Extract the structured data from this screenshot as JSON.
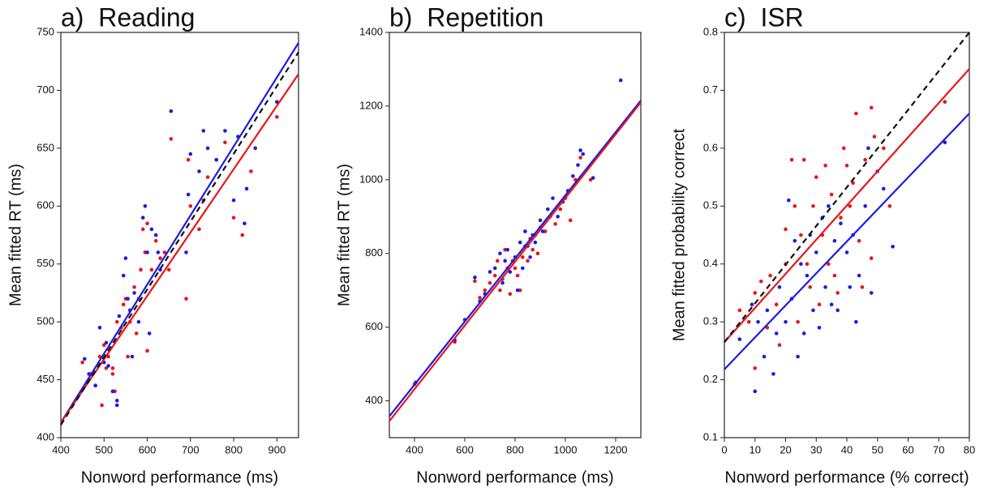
{
  "chart_data": [
    {
      "type": "scatter",
      "title": "a)  Reading",
      "xlabel": "Nonword performance (ms)",
      "ylabel": "Mean fitted RT (ms)",
      "xlim": [
        400,
        950
      ],
      "ylim": [
        400,
        750
      ],
      "xticks": [
        400,
        500,
        600,
        700,
        800,
        900
      ],
      "yticks": [
        400,
        450,
        500,
        550,
        600,
        650,
        700,
        750
      ],
      "series": [
        {
          "color": "#e8161b",
          "x": [
            450,
            470,
            480,
            490,
            495,
            500,
            505,
            510,
            520,
            525,
            530,
            540,
            545,
            550,
            555,
            560,
            570,
            575,
            580,
            585,
            590,
            595,
            600,
            600,
            610,
            620,
            630,
            640,
            655,
            690,
            695,
            700,
            720,
            730,
            740,
            760,
            780,
            800,
            820,
            840,
            900,
            520,
            560,
            650
          ],
          "values": [
            465,
            455,
            445,
            470,
            428,
            480,
            460,
            470,
            455,
            440,
            500,
            495,
            515,
            520,
            470,
            500,
            530,
            490,
            520,
            545,
            580,
            560,
            585,
            475,
            545,
            570,
            555,
            560,
            658,
            520,
            640,
            600,
            580,
            605,
            625,
            640,
            655,
            590,
            575,
            630,
            677,
            460,
            510,
            545
          ]
        },
        {
          "color": "#1c1ce0",
          "x": [
            455,
            465,
            480,
            490,
            500,
            505,
            510,
            520,
            530,
            535,
            545,
            550,
            555,
            560,
            570,
            580,
            590,
            595,
            600,
            605,
            610,
            620,
            625,
            630,
            655,
            690,
            695,
            700,
            720,
            730,
            740,
            760,
            780,
            800,
            810,
            825,
            830,
            850,
            900,
            530,
            565
          ],
          "values": [
            468,
            455,
            445,
            495,
            465,
            482,
            462,
            440,
            432,
            505,
            540,
            555,
            520,
            510,
            525,
            500,
            590,
            600,
            560,
            490,
            580,
            575,
            560,
            545,
            682,
            560,
            610,
            645,
            630,
            665,
            650,
            640,
            665,
            605,
            660,
            585,
            615,
            650,
            690,
            428,
            470
          ]
        }
      ],
      "fits": [
        {
          "color": "#1c1ce0",
          "x": [
            400,
            950
          ],
          "values": [
            413,
            741
          ]
        },
        {
          "color": "#e8161b",
          "x": [
            400,
            950
          ],
          "values": [
            413,
            714
          ]
        },
        {
          "color": "#111111",
          "dash": true,
          "x": [
            400,
            950
          ],
          "values": [
            411,
            733
          ]
        }
      ]
    },
    {
      "type": "scatter",
      "title": "b)  Repetition",
      "xlabel": "Nonword performance (ms)",
      "ylabel": "Mean fitted RT (ms)",
      "xlim": [
        300,
        1300
      ],
      "ylim": [
        300,
        1400
      ],
      "xticks": [
        400,
        600,
        800,
        1000,
        1200
      ],
      "yticks": [
        400,
        600,
        800,
        1000,
        1200,
        1400
      ],
      "series": [
        {
          "color": "#e8161b",
          "x": [
            400,
            560,
            640,
            660,
            680,
            700,
            720,
            730,
            740,
            750,
            760,
            770,
            780,
            790,
            800,
            810,
            820,
            830,
            840,
            850,
            860,
            870,
            880,
            890,
            900,
            920,
            940,
            960,
            980,
            1000,
            1020,
            1040,
            1060,
            1100
          ],
          "values": [
            445,
            560,
            725,
            680,
            700,
            720,
            740,
            780,
            700,
            730,
            810,
            760,
            690,
            780,
            760,
            740,
            700,
            790,
            820,
            780,
            840,
            810,
            850,
            800,
            870,
            860,
            900,
            880,
            920,
            950,
            890,
            1000,
            1060,
            1000
          ]
        },
        {
          "color": "#1c1ce0",
          "x": [
            405,
            560,
            600,
            640,
            660,
            680,
            700,
            720,
            740,
            750,
            760,
            770,
            780,
            800,
            810,
            820,
            830,
            840,
            850,
            860,
            870,
            880,
            900,
            910,
            930,
            950,
            970,
            990,
            1010,
            1030,
            1050,
            1060,
            1070,
            1110,
            1220
          ],
          "values": [
            450,
            565,
            620,
            735,
            670,
            690,
            750,
            760,
            800,
            720,
            780,
            810,
            750,
            790,
            700,
            830,
            760,
            860,
            820,
            790,
            850,
            830,
            890,
            860,
            920,
            950,
            900,
            940,
            970,
            1010,
            1040,
            1080,
            1070,
            1005,
            1270
          ]
        }
      ],
      "fits": [
        {
          "color": "#1c1ce0",
          "x": [
            300,
            1300
          ],
          "values": [
            358,
            1215
          ]
        },
        {
          "color": "#e8161b",
          "x": [
            300,
            1300
          ],
          "values": [
            345,
            1210
          ]
        }
      ]
    },
    {
      "type": "scatter",
      "title": "c)  ISR",
      "xlabel": "Nonword performance (% correct)",
      "ylabel": "Mean fitted probability correct",
      "xlim": [
        0,
        80
      ],
      "ylim": [
        0.1,
        0.8
      ],
      "xticks": [
        0,
        10,
        20,
        30,
        40,
        50,
        60,
        70,
        80
      ],
      "yticks": [
        0.1,
        0.2,
        0.3,
        0.4,
        0.5,
        0.6,
        0.7,
        0.8
      ],
      "series": [
        {
          "color": "#e8161b",
          "x": [
            5,
            8,
            10,
            10,
            12,
            14,
            15,
            17,
            18,
            20,
            20,
            22,
            23,
            24,
            25,
            26,
            27,
            28,
            29,
            30,
            31,
            32,
            33,
            34,
            35,
            36,
            37,
            38,
            39,
            40,
            41,
            42,
            43,
            44,
            45,
            46,
            48,
            48,
            49,
            52,
            54,
            72
          ],
          "values": [
            0.32,
            0.3,
            0.35,
            0.22,
            0.37,
            0.29,
            0.38,
            0.33,
            0.26,
            0.46,
            0.4,
            0.58,
            0.5,
            0.3,
            0.45,
            0.58,
            0.4,
            0.36,
            0.5,
            0.55,
            0.33,
            0.45,
            0.57,
            0.4,
            0.52,
            0.38,
            0.35,
            0.48,
            0.6,
            0.57,
            0.5,
            0.54,
            0.66,
            0.44,
            0.36,
            0.58,
            0.67,
            0.41,
            0.62,
            0.6,
            0.5,
            0.68
          ]
        },
        {
          "color": "#1c1ce0",
          "x": [
            5,
            9,
            10,
            11,
            13,
            14,
            16,
            17,
            18,
            20,
            21,
            22,
            23,
            24,
            25,
            26,
            27,
            28,
            29,
            30,
            31,
            32,
            33,
            34,
            35,
            36,
            37,
            38,
            40,
            41,
            42,
            43,
            44,
            46,
            47,
            48,
            50,
            52,
            55,
            72
          ],
          "values": [
            0.27,
            0.33,
            0.18,
            0.3,
            0.24,
            0.32,
            0.21,
            0.28,
            0.36,
            0.3,
            0.51,
            0.34,
            0.44,
            0.24,
            0.4,
            0.28,
            0.38,
            0.45,
            0.32,
            0.42,
            0.29,
            0.48,
            0.36,
            0.5,
            0.33,
            0.44,
            0.32,
            0.47,
            0.42,
            0.36,
            0.45,
            0.3,
            0.38,
            0.5,
            0.6,
            0.35,
            0.56,
            0.53,
            0.43,
            0.61
          ]
        }
      ],
      "fits": [
        {
          "color": "#e8161b",
          "x": [
            0,
            80
          ],
          "values": [
            0.265,
            0.737
          ]
        },
        {
          "color": "#1c1ce0",
          "x": [
            0,
            80
          ],
          "values": [
            0.218,
            0.66
          ]
        },
        {
          "color": "#111111",
          "dash": true,
          "x": [
            0,
            80
          ],
          "values": [
            0.265,
            0.8
          ]
        }
      ]
    }
  ]
}
